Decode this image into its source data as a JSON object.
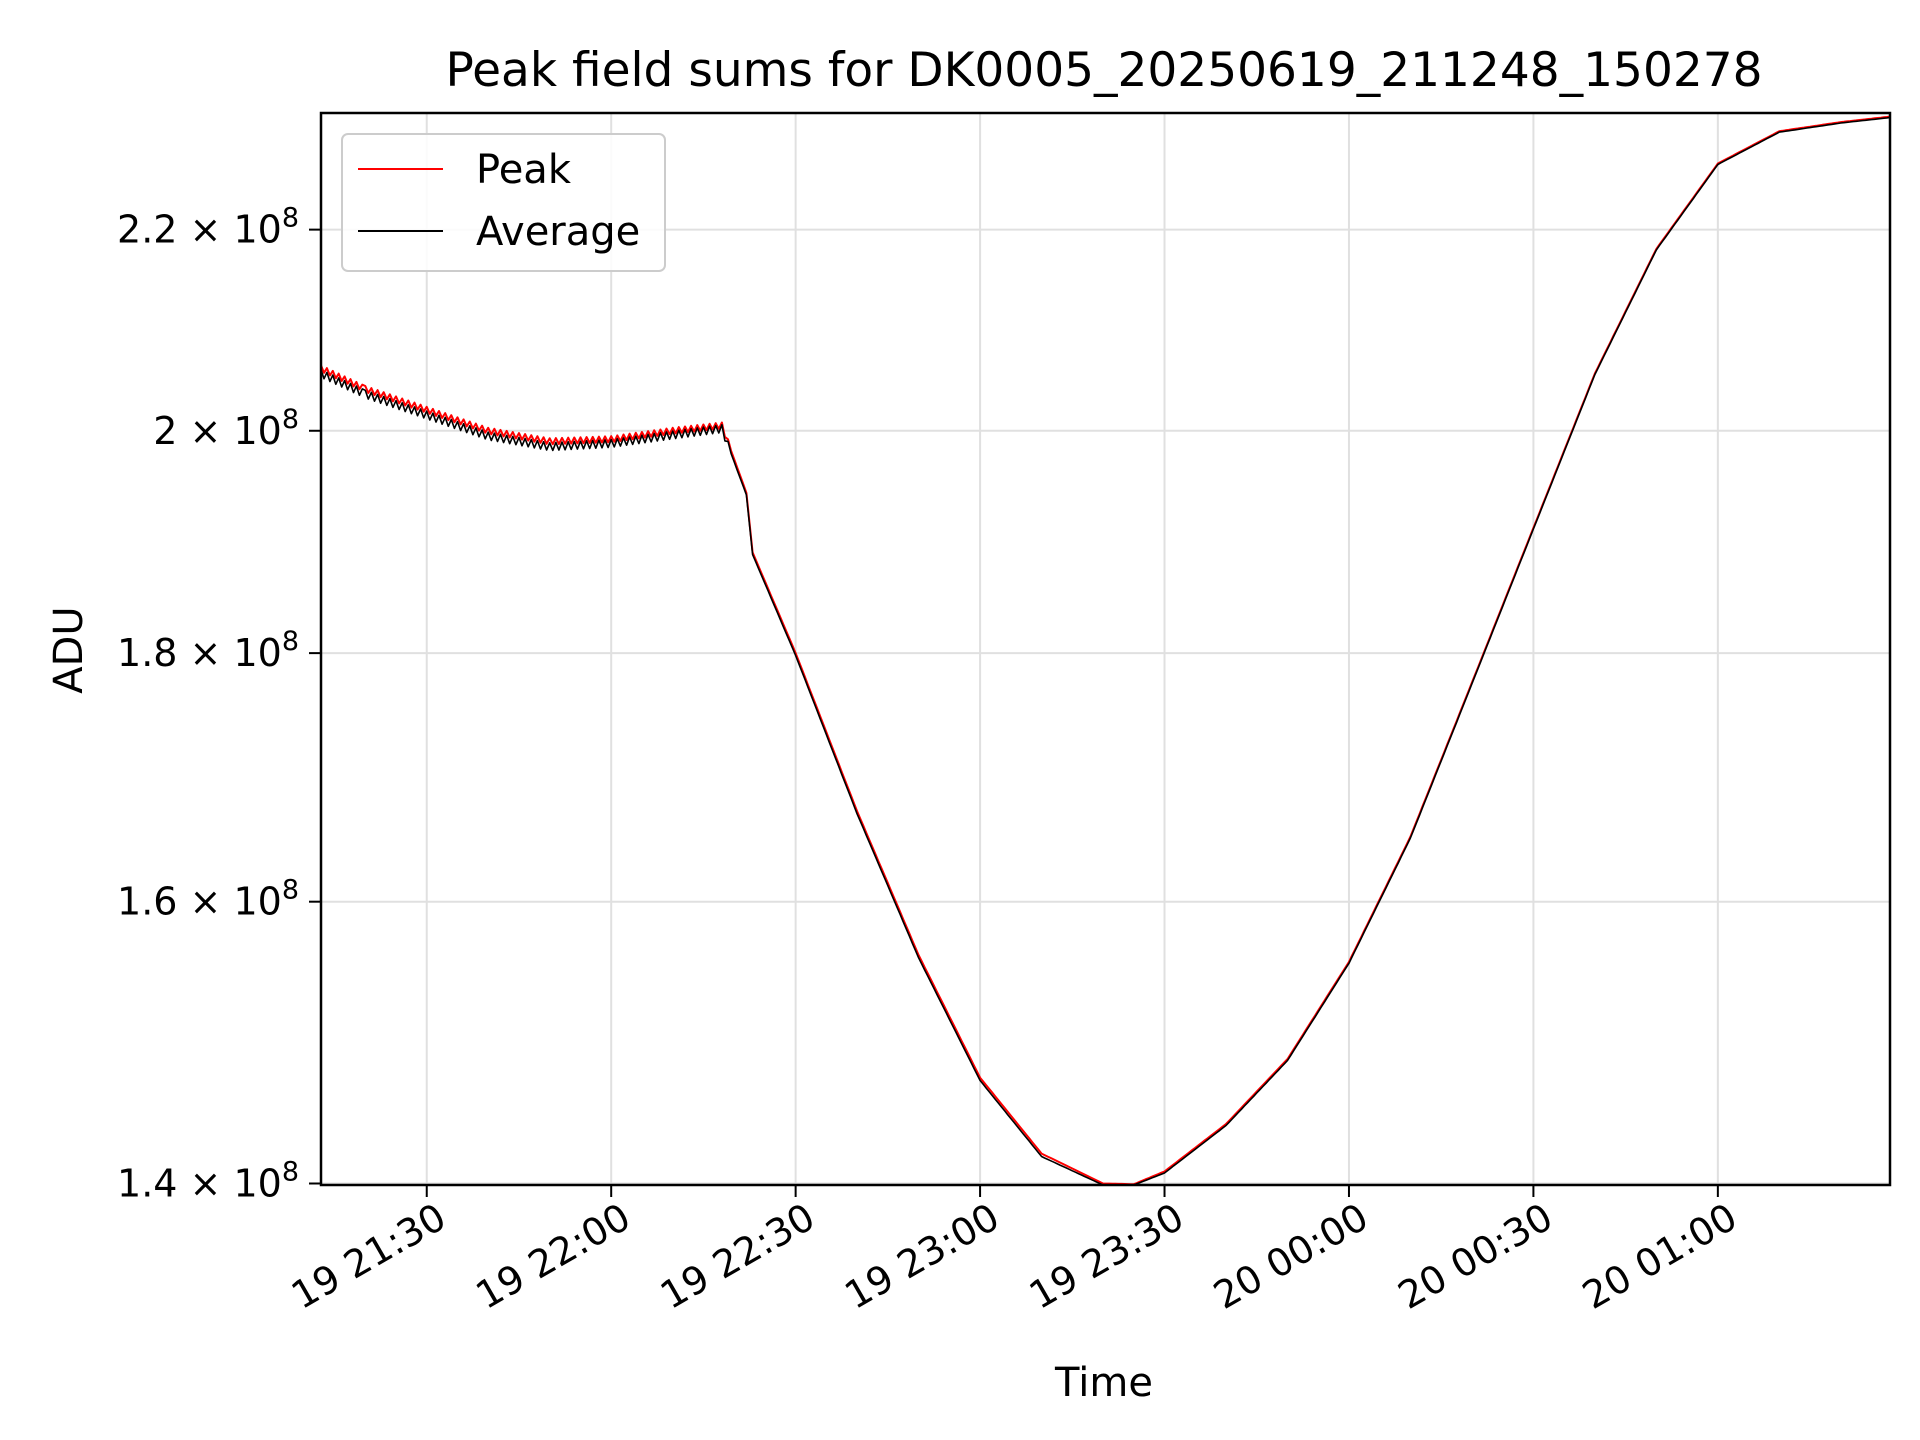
{
  "chart_data": {
    "type": "line",
    "title": "Peak field sums for DK0005_20250619_211248_150278",
    "xlabel": "Time",
    "ylabel": "ADU",
    "yscale": "log",
    "grid": true,
    "legend_placement": "upper-left",
    "xlim": [
      "2025-06-19 21:12:48",
      "2025-06-20 01:28:00"
    ],
    "ylim": [
      139900000,
      232500000
    ],
    "x_ticks": [
      {
        "value": "2025-06-19 21:30:00",
        "label": "19 21:30"
      },
      {
        "value": "2025-06-19 22:00:00",
        "label": "19 22:00"
      },
      {
        "value": "2025-06-19 22:30:00",
        "label": "19 22:30"
      },
      {
        "value": "2025-06-19 23:00:00",
        "label": "19 23:00"
      },
      {
        "value": "2025-06-19 23:30:00",
        "label": "19 23:30"
      },
      {
        "value": "2025-06-20 00:00:00",
        "label": "20 00:00"
      },
      {
        "value": "2025-06-20 00:30:00",
        "label": "20 00:30"
      },
      {
        "value": "2025-06-20 01:00:00",
        "label": "20 01:00"
      }
    ],
    "y_ticks": [
      {
        "value": 140000000,
        "mantissa": "1.4"
      },
      {
        "value": 160000000,
        "mantissa": "1.6"
      },
      {
        "value": 180000000,
        "mantissa": "1.8"
      },
      {
        "value": 200000000,
        "mantissa": "2"
      },
      {
        "value": 220000000,
        "mantissa": "2.2"
      }
    ],
    "y_tick_times": "×",
    "y_tick_base": "10",
    "y_tick_exponent": "8",
    "series": [
      {
        "name": "Peak",
        "color": "#ff0000",
        "x": [
          "2025-06-19 21:12:48",
          "2025-06-19 21:20:00",
          "2025-06-19 21:30:00",
          "2025-06-19 21:40:00",
          "2025-06-19 21:50:00",
          "2025-06-19 22:00:00",
          "2025-06-19 22:10:00",
          "2025-06-19 22:18:00",
          "2025-06-19 22:22:00",
          "2025-06-19 22:23:00",
          "2025-06-19 22:30:00",
          "2025-06-19 22:40:00",
          "2025-06-19 22:50:00",
          "2025-06-19 23:00:00",
          "2025-06-19 23:10:00",
          "2025-06-19 23:20:00",
          "2025-06-19 23:25:00",
          "2025-06-19 23:30:00",
          "2025-06-19 23:40:00",
          "2025-06-19 23:50:00",
          "2025-06-20 00:00:00",
          "2025-06-20 00:10:00",
          "2025-06-20 00:20:00",
          "2025-06-20 00:30:00",
          "2025-06-20 00:40:00",
          "2025-06-20 00:50:00",
          "2025-06-20 01:00:00",
          "2025-06-20 01:10:00",
          "2025-06-20 01:20:00",
          "2025-06-20 01:28:00"
        ],
        "values": [
          206000000,
          204000000,
          202000000,
          200000000,
          199000000,
          199200000,
          200000000,
          200500000,
          194200000,
          188800000,
          180000000,
          167000000,
          156000000,
          147200000,
          142000000,
          140000000,
          139950000,
          140800000,
          144000000,
          148500000,
          155500000,
          165000000,
          177500000,
          191000000,
          205500000,
          218000000,
          227000000,
          230500000,
          231500000,
          232100000
        ]
      },
      {
        "name": "Average",
        "color": "#000000",
        "x": [
          "2025-06-19 21:12:48",
          "2025-06-19 21:20:00",
          "2025-06-19 21:30:00",
          "2025-06-19 21:40:00",
          "2025-06-19 21:50:00",
          "2025-06-19 22:00:00",
          "2025-06-19 22:10:00",
          "2025-06-19 22:18:00",
          "2025-06-19 22:22:00",
          "2025-06-19 22:23:00",
          "2025-06-19 22:30:00",
          "2025-06-19 22:40:00",
          "2025-06-19 22:50:00",
          "2025-06-19 23:00:00",
          "2025-06-19 23:10:00",
          "2025-06-19 23:20:00",
          "2025-06-19 23:25:00",
          "2025-06-19 23:30:00",
          "2025-06-19 23:40:00",
          "2025-06-19 23:50:00",
          "2025-06-20 00:00:00",
          "2025-06-20 00:10:00",
          "2025-06-20 00:20:00",
          "2025-06-20 00:30:00",
          "2025-06-20 00:40:00",
          "2025-06-20 00:50:00",
          "2025-06-20 01:00:00",
          "2025-06-20 01:10:00",
          "2025-06-20 01:20:00",
          "2025-06-20 01:28:00"
        ],
        "values": [
          205500000,
          203500000,
          201500000,
          199500000,
          198500000,
          198800000,
          199600000,
          200200000,
          194000000,
          188600000,
          179800000,
          166800000,
          155800000,
          147000000,
          141800000,
          139900000,
          139900000,
          140700000,
          143900000,
          148400000,
          155400000,
          164900000,
          177400000,
          190900000,
          205400000,
          217900000,
          226900000,
          230400000,
          231400000,
          232000000
        ]
      }
    ]
  }
}
